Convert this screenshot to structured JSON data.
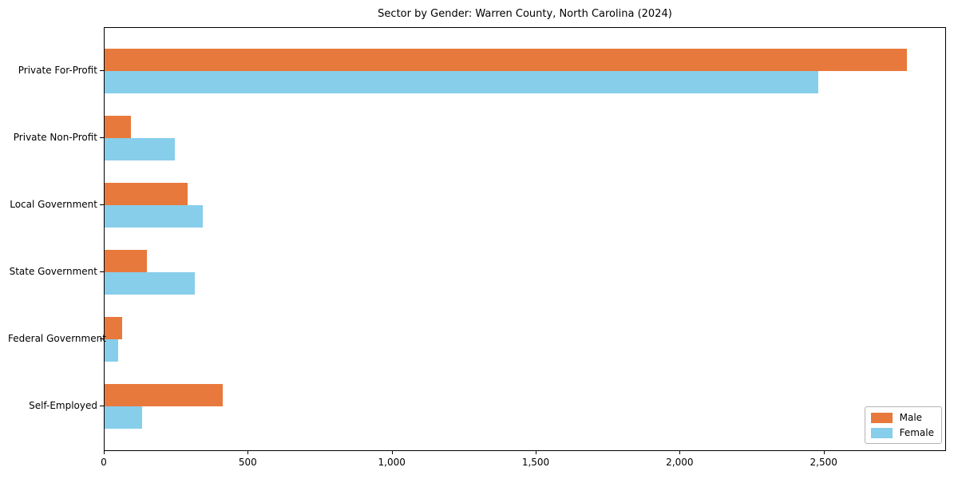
{
  "chart_data": {
    "type": "bar",
    "orientation": "horizontal",
    "title": "Sector by Gender: Warren County, North Carolina (2024)",
    "categories": [
      "Private For-Profit",
      "Private Non-Profit",
      "Local Government",
      "State Government",
      "Federal Government",
      "Self-Employed"
    ],
    "series": [
      {
        "name": "Male",
        "color": "#e8793c",
        "values": [
          2785,
          92,
          289,
          148,
          60,
          411
        ]
      },
      {
        "name": "Female",
        "color": "#87ceeb",
        "values": [
          2478,
          245,
          342,
          314,
          48,
          129
        ]
      }
    ],
    "x_tick_values": [
      0,
      500,
      1000,
      1500,
      2000,
      2500
    ],
    "x_tick_labels": [
      "0",
      "500",
      "1,000",
      "1,500",
      "2,000",
      "2,500"
    ],
    "xlim": [
      0,
      2925
    ],
    "xlabel": "",
    "ylabel": "",
    "grid": false,
    "legend_position": "lower right",
    "axis_color": "#000000",
    "background_color": "#ffffff"
  }
}
